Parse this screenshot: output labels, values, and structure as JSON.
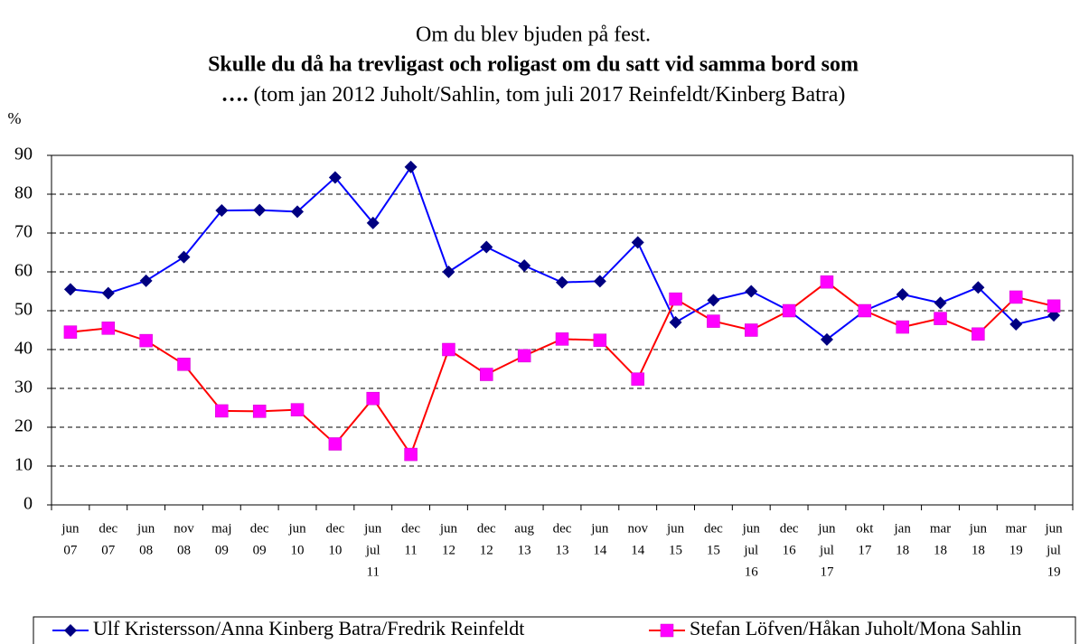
{
  "chart_data": {
    "type": "line",
    "title": "Om du blev bjuden på fest.",
    "subtitle": "Skulle du då ha trevligast och roligast om du satt vid samma bord som",
    "subtitle_prefix": "….",
    "note": "(tom jan 2012 Juholt/Sahlin, tom juli 2017 Reinfeldt/Kinberg Batra)",
    "y_label": "%",
    "categories": [
      [
        "jun",
        "07"
      ],
      [
        "dec",
        "07"
      ],
      [
        "jun",
        "08"
      ],
      [
        "nov",
        "08"
      ],
      [
        "maj",
        "09"
      ],
      [
        "dec",
        "09"
      ],
      [
        "jun",
        "10"
      ],
      [
        "dec",
        "10"
      ],
      [
        "jun",
        "jul",
        "11"
      ],
      [
        "dec",
        "11"
      ],
      [
        "jun",
        "12"
      ],
      [
        "dec",
        "12"
      ],
      [
        "aug",
        "13"
      ],
      [
        "dec",
        "13"
      ],
      [
        "jun",
        "14"
      ],
      [
        "nov",
        "14"
      ],
      [
        "jun",
        "15"
      ],
      [
        "dec",
        "15"
      ],
      [
        "jun",
        "jul",
        "16"
      ],
      [
        "dec",
        "16"
      ],
      [
        "jun",
        "jul",
        "17"
      ],
      [
        "okt",
        "17"
      ],
      [
        "jan",
        "18"
      ],
      [
        "mar",
        "18"
      ],
      [
        "jun",
        "18"
      ],
      [
        "mar",
        "19"
      ],
      [
        "jun",
        "jul",
        "19"
      ]
    ],
    "series": [
      {
        "name": "Ulf Kristersson/Anna Kinberg Batra/Fredrik Reinfeldt",
        "color": "#0000ff",
        "marker_color": "#000080",
        "marker": "diamond",
        "values": [
          55.5,
          54.5,
          57.7,
          63.8,
          75.8,
          75.9,
          75.5,
          84.3,
          72.6,
          87,
          60,
          66.4,
          61.6,
          57.3,
          57.6,
          67.6,
          47,
          52.7,
          55,
          50,
          42.6,
          50,
          54.2,
          52,
          56,
          46.5,
          48.8
        ]
      },
      {
        "name": "Stefan Löfven/Håkan Juholt/Mona Sahlin",
        "color": "#ff0000",
        "marker_color": "#ff00ff",
        "marker": "square",
        "values": [
          44.5,
          45.5,
          42.3,
          36.2,
          24.2,
          24.1,
          24.5,
          15.7,
          27.4,
          13,
          40,
          33.6,
          38.4,
          42.7,
          42.4,
          32.4,
          53,
          47.3,
          45,
          50,
          57.4,
          50,
          45.8,
          48,
          44,
          53.5,
          51.2
        ]
      }
    ],
    "ylim": [
      0,
      90
    ],
    "yticks": [
      0,
      10,
      20,
      30,
      40,
      50,
      60,
      70,
      80,
      90
    ],
    "grid": true,
    "legend": "bottom"
  }
}
